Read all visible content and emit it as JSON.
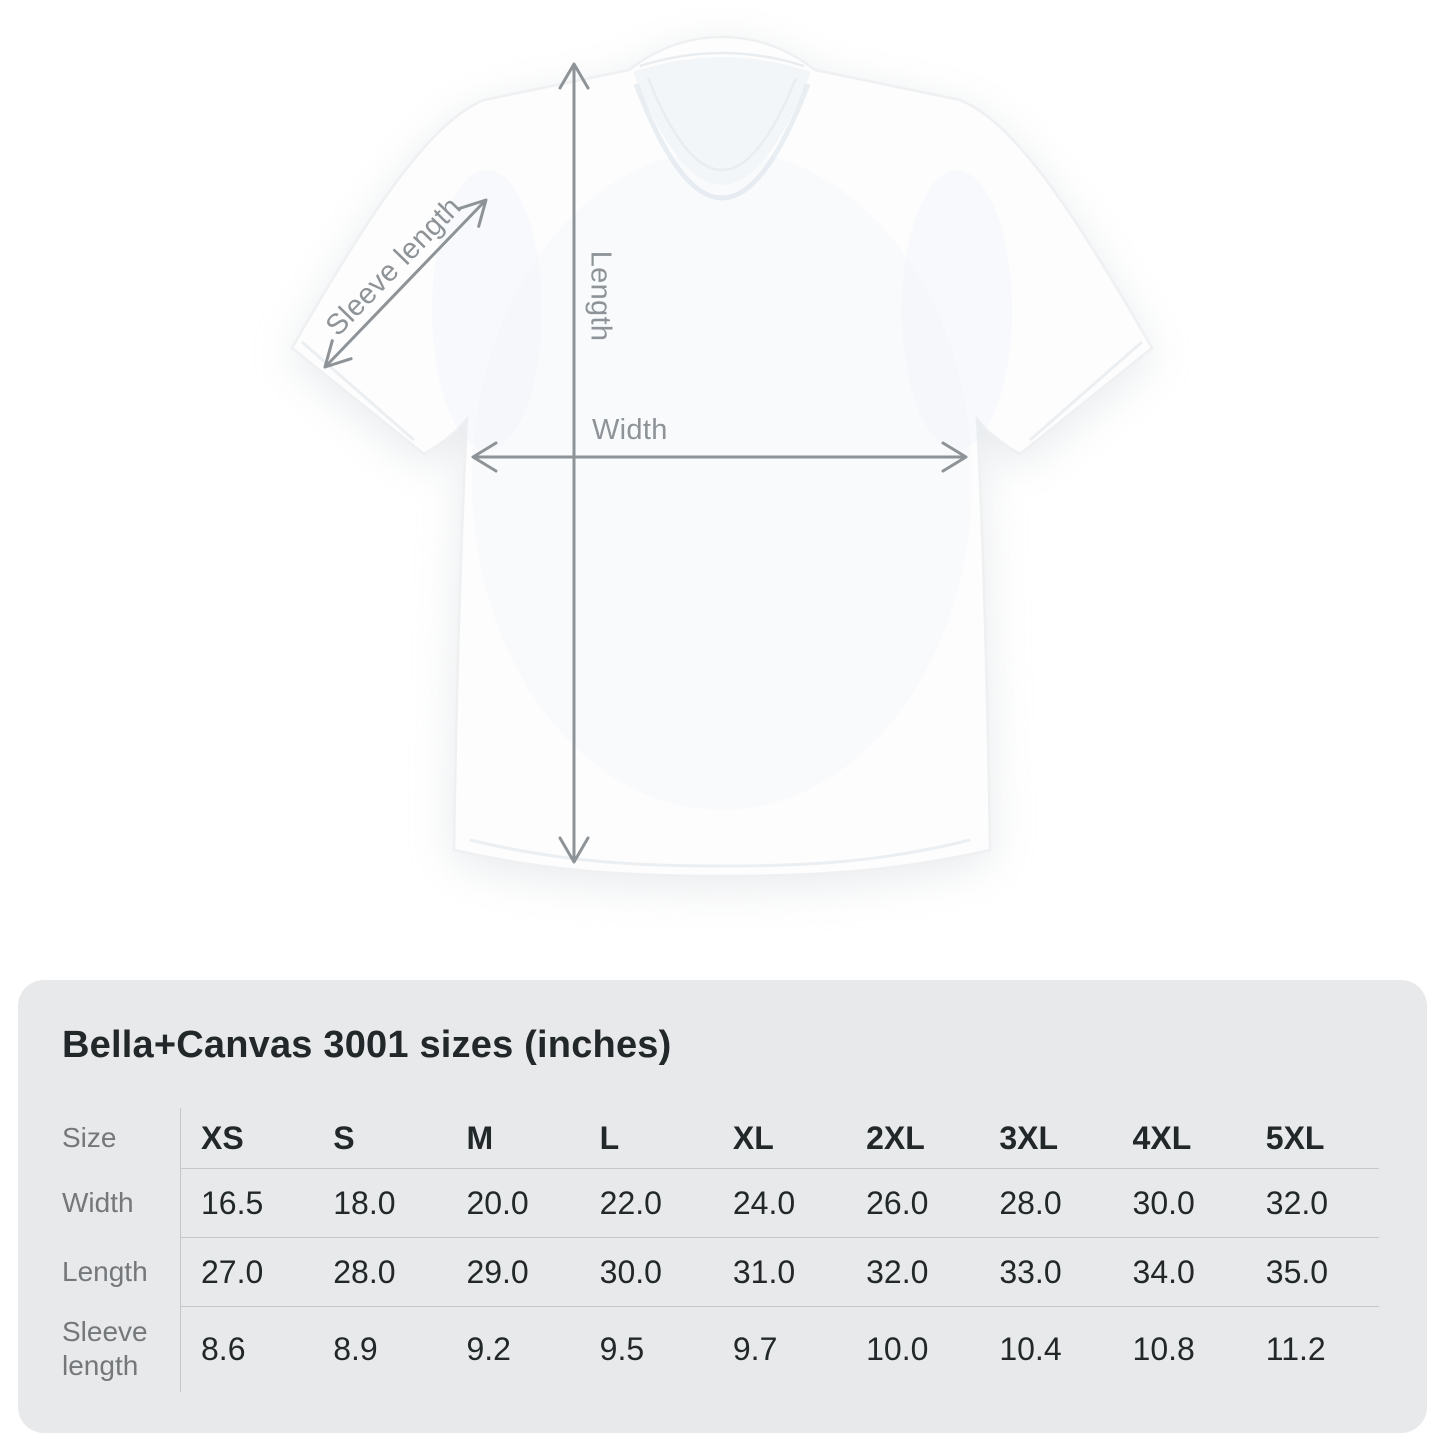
{
  "theme": {
    "page_bg": "#ffffff",
    "card_bg": "#e8e9ea",
    "text_dark": "#222729",
    "text_gray": "#74787b",
    "line": "#c5c8ca",
    "arrow": "#8d9397",
    "diagram_label": "#8d9397",
    "shirt_fill": "#fdfdfe",
    "shirt_edge": "#eef0f2"
  },
  "diagram": {
    "sleeve_label": "Sleeve length",
    "length_label": "Length",
    "width_label": "Width"
  },
  "table": {
    "title": "Bella+Canvas 3001 sizes (inches)",
    "corner_label": "Size",
    "sizes": [
      "XS",
      "S",
      "M",
      "L",
      "XL",
      "2XL",
      "3XL",
      "4XL",
      "5XL"
    ],
    "rows": [
      {
        "label": "Width",
        "values": [
          "16.5",
          "18.0",
          "20.0",
          "22.0",
          "24.0",
          "26.0",
          "28.0",
          "30.0",
          "32.0"
        ]
      },
      {
        "label": "Length",
        "values": [
          "27.0",
          "28.0",
          "29.0",
          "30.0",
          "31.0",
          "32.0",
          "33.0",
          "34.0",
          "35.0"
        ]
      },
      {
        "label": "Sleeve length",
        "values": [
          "8.6",
          "8.9",
          "9.2",
          "9.5",
          "9.7",
          "10.0",
          "10.4",
          "10.8",
          "11.2"
        ]
      }
    ]
  },
  "chart_data": {
    "type": "table",
    "title": "Bella+Canvas 3001 sizes (inches)",
    "columns": [
      "Size",
      "XS",
      "S",
      "M",
      "L",
      "XL",
      "2XL",
      "3XL",
      "4XL",
      "5XL"
    ],
    "rows": [
      [
        "Width",
        16.5,
        18.0,
        20.0,
        22.0,
        24.0,
        26.0,
        28.0,
        30.0,
        32.0
      ],
      [
        "Length",
        27.0,
        28.0,
        29.0,
        30.0,
        31.0,
        32.0,
        33.0,
        34.0,
        35.0
      ],
      [
        "Sleeve length",
        8.6,
        8.9,
        9.2,
        9.5,
        9.7,
        10.0,
        10.4,
        10.8,
        11.2
      ]
    ],
    "units": "inches"
  }
}
